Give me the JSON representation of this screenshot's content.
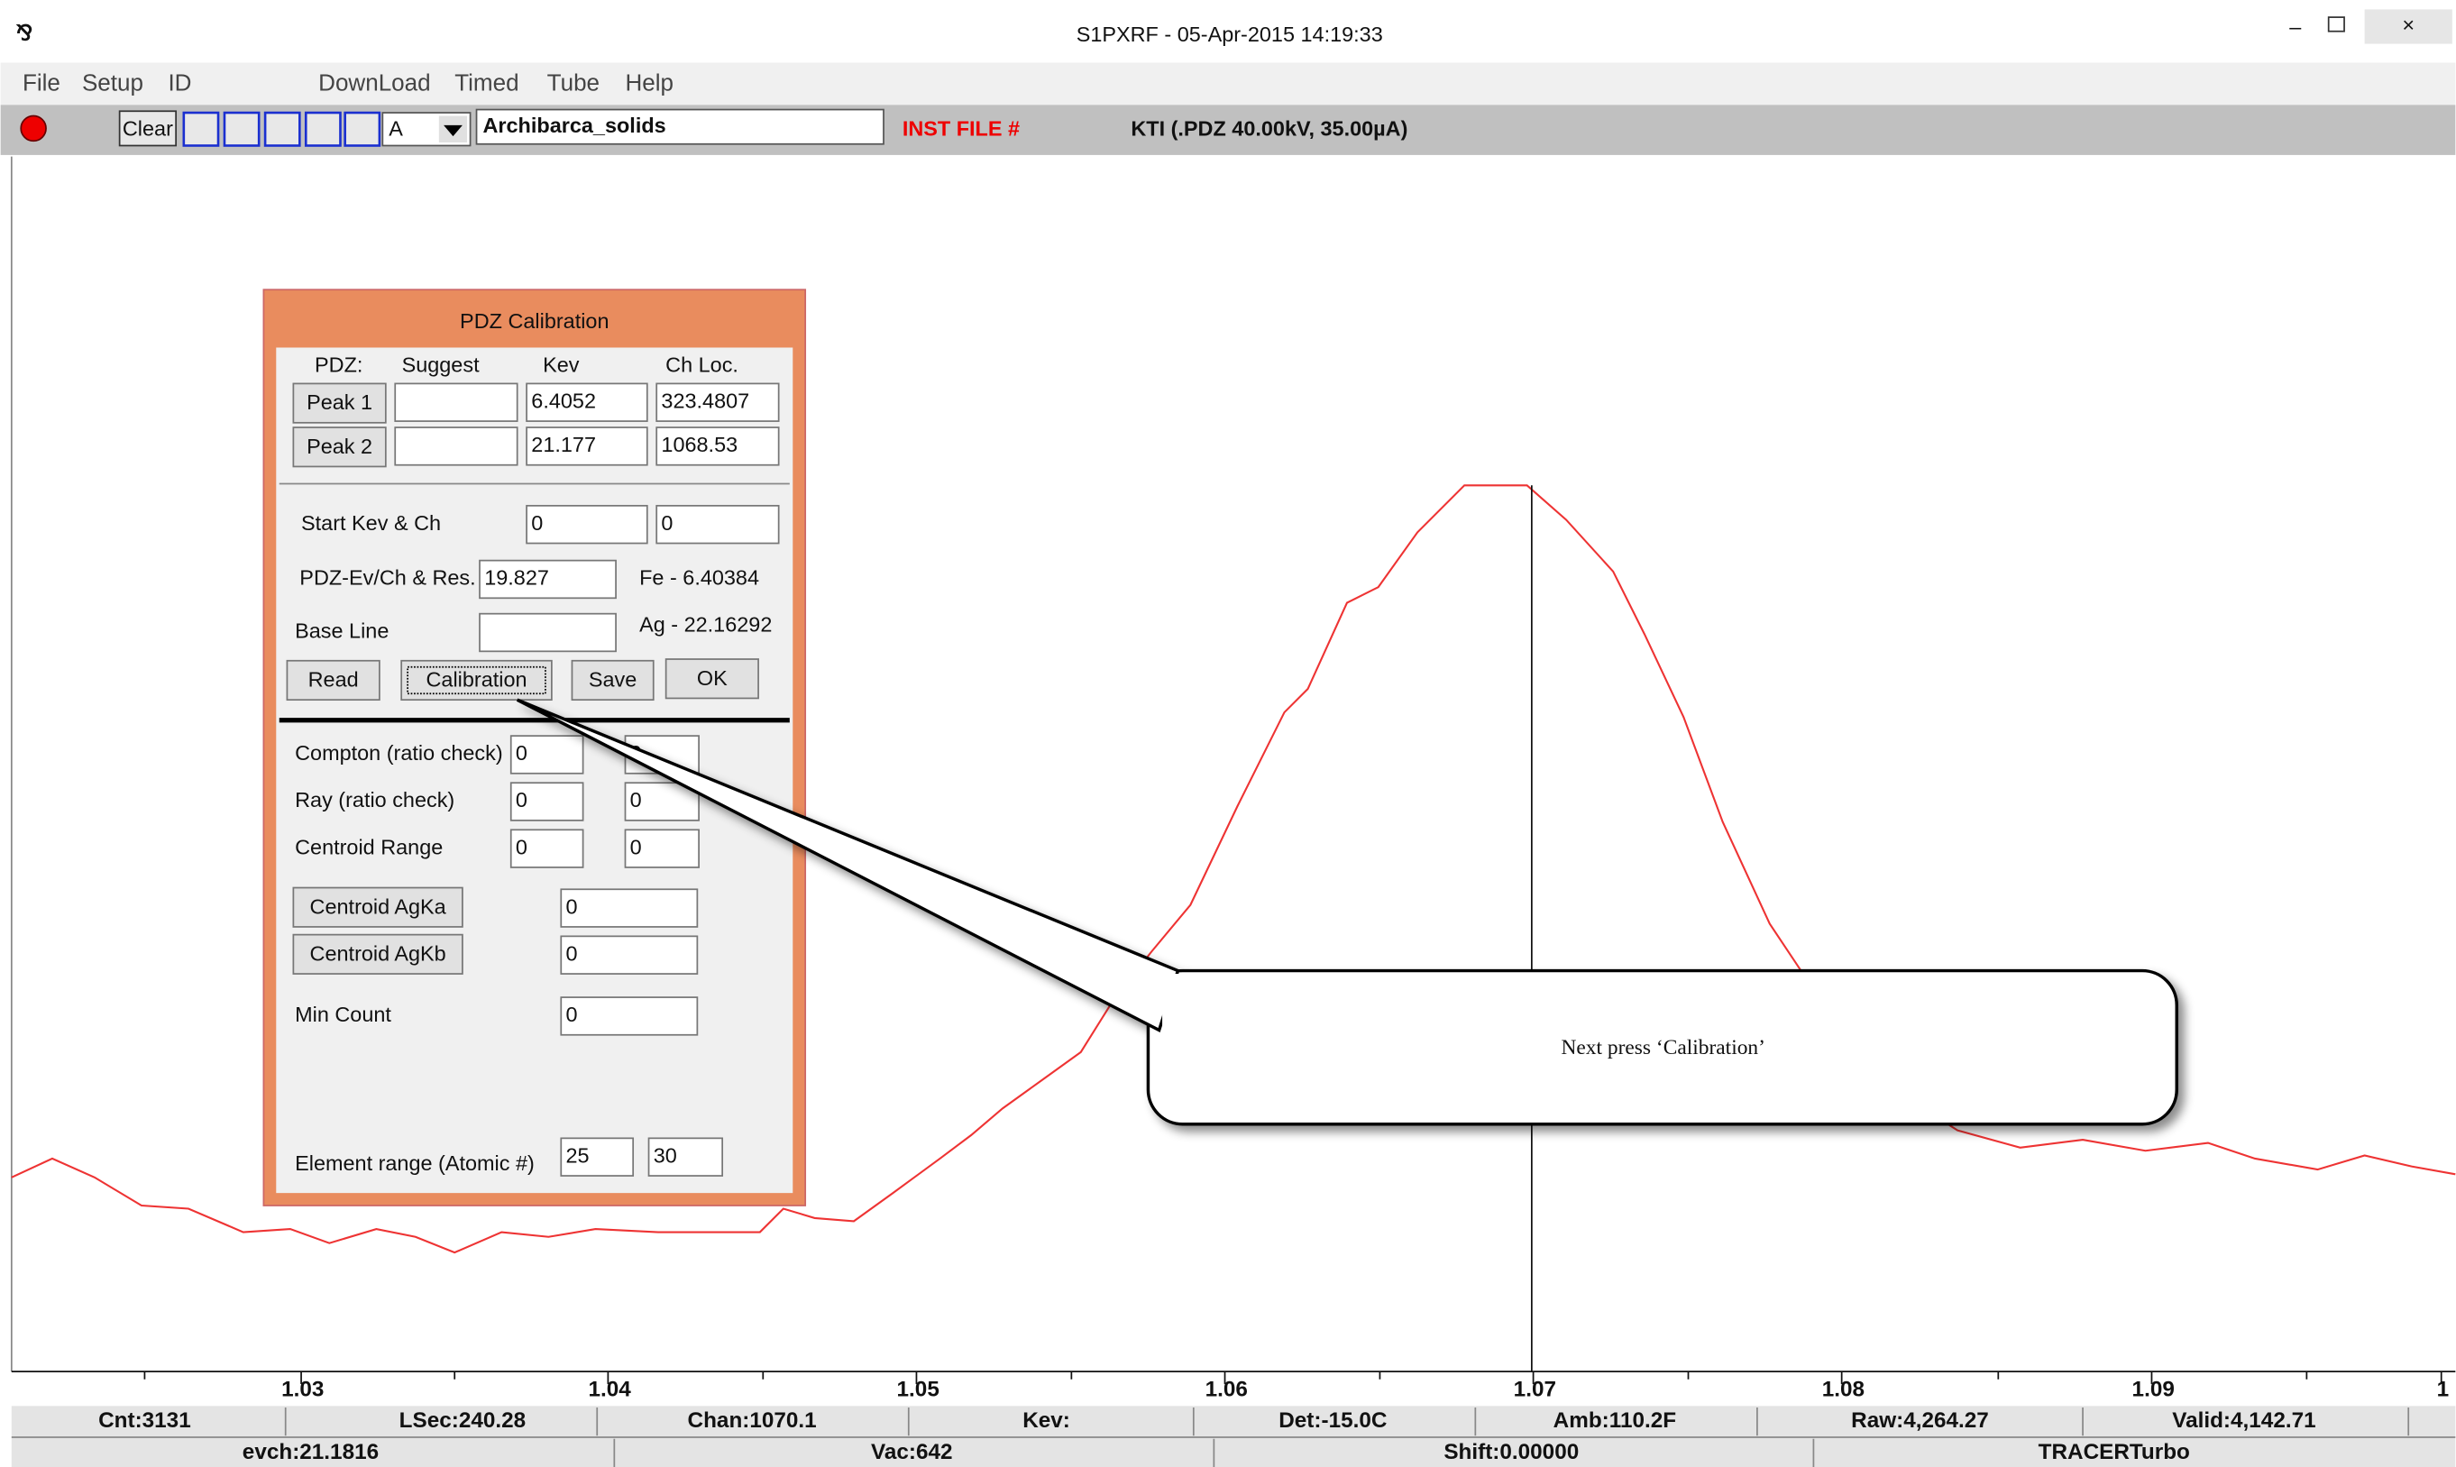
{
  "window": {
    "title": "S1PXRF - 05-Apr-2015 14:19:33",
    "menu": [
      "File",
      "Setup",
      "ID",
      "DownLoad",
      "Timed",
      "Tube",
      "Help"
    ]
  },
  "toolbar": {
    "clear": "Clear",
    "channel": "A",
    "sample": "Archibarca_solids",
    "inst_file": "INST FILE #",
    "info": "KTI  (.PDZ 40.00kV, 35.00µA)"
  },
  "dialog": {
    "title": "PDZ Calibration",
    "headers": [
      "PDZ:",
      "Suggest",
      "Kev",
      "Ch Loc."
    ],
    "peaks": [
      {
        "button": "Peak 1",
        "kev": "6.4052",
        "ch": "323.4807"
      },
      {
        "button": "Peak 2",
        "kev": "21.177",
        "ch": "1068.53"
      }
    ],
    "start": {
      "label": "Start Kev & Ch",
      "kev": "0",
      "ch": "0"
    },
    "evch": {
      "label": "PDZ-Ev/Ch & Res.",
      "value": "19.827",
      "note": "Fe - 6.40384"
    },
    "baseline": {
      "label": "Base Line",
      "note": "Ag - 22.16292"
    },
    "buttons": [
      "Read",
      "Calibration",
      "Save",
      "OK"
    ],
    "compton": {
      "label": "Compton (ratio check)",
      "a": "0",
      "b": "0"
    },
    "ray": {
      "label": "Ray (ratio check)",
      "a": "0",
      "b": "0"
    },
    "centroid_range": {
      "label": "Centroid Range",
      "a": "0",
      "b": "0"
    },
    "agka": {
      "button": "Centroid AgKa",
      "value": "0"
    },
    "agkb": {
      "button": "Centroid AgKb",
      "value": "0"
    },
    "min_count": {
      "label": "Min Count",
      "value": "0"
    },
    "element_range": {
      "label": "Element range (Atomic #)",
      "a": "25",
      "b": "30"
    }
  },
  "x_axis_labels": [
    "1.03",
    "1.04",
    "1.05",
    "1.06",
    "1.07",
    "1.08",
    "1.09",
    "1"
  ],
  "status_row1": [
    "Cnt:3131",
    "LSec:240.28",
    "Chan:1070.1",
    "Kev:",
    "Det:-15.0C",
    "Amb:110.2F",
    "Raw:4,264.27",
    "Valid:4,142.71"
  ],
  "status_row2": [
    "evch:21.1816",
    "Vac:642",
    "Shift:0.00000",
    "TRACERTurbo"
  ],
  "callout": "Next press ‘Calibration’"
}
